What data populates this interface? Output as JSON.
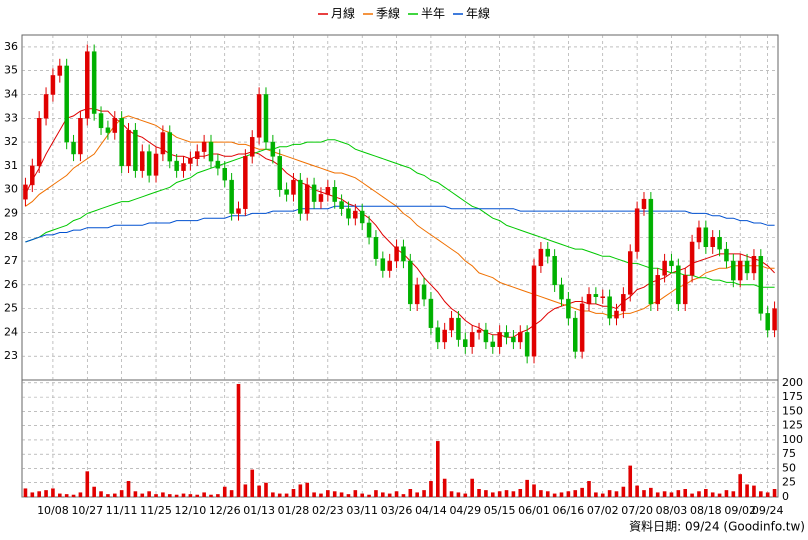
{
  "chart_data": [
    {
      "type": "candlestick",
      "categories": [
        null,
        null,
        null,
        null,
        "10/08",
        null,
        null,
        null,
        null,
        "10/27",
        null,
        null,
        null,
        null,
        "11/11",
        null,
        null,
        null,
        null,
        "11/25",
        null,
        null,
        null,
        null,
        "12/10",
        null,
        null,
        null,
        null,
        "12/26",
        null,
        null,
        null,
        null,
        "01/13",
        null,
        null,
        null,
        null,
        "01/28",
        null,
        null,
        null,
        null,
        "02/23",
        null,
        null,
        null,
        null,
        "03/11",
        null,
        null,
        null,
        null,
        "03/26",
        null,
        null,
        null,
        null,
        "04/14",
        null,
        null,
        null,
        null,
        "04/29",
        null,
        null,
        null,
        null,
        "05/15",
        null,
        null,
        null,
        null,
        "06/01",
        null,
        null,
        null,
        null,
        "06/16",
        null,
        null,
        null,
        null,
        "07/02",
        null,
        null,
        null,
        null,
        "07/20",
        null,
        null,
        null,
        null,
        "08/03",
        null,
        null,
        null,
        null,
        "08/18",
        null,
        null,
        null,
        null,
        "09/02",
        null,
        null,
        null,
        "09/24",
        null
      ],
      "open": [
        29.6,
        30.2,
        31,
        33,
        34,
        34.8,
        35.2,
        32,
        31.5,
        33,
        35.8,
        33.2,
        32.6,
        32.4,
        33,
        31,
        32.5,
        30.8,
        31.6,
        30.6,
        31.5,
        32.4,
        31.2,
        30.8,
        31.1,
        31.3,
        31.6,
        32,
        31.2,
        30.9,
        30.4,
        29,
        29.2,
        31.4,
        32.2,
        34,
        32,
        31.4,
        30,
        29.8,
        30.4,
        29,
        30.2,
        29.5,
        29.8,
        30.1,
        29.5,
        29.2,
        28.8,
        29.1,
        28.6,
        28,
        27.1,
        26.6,
        27,
        27.6,
        27,
        25.2,
        26,
        25.4,
        24.2,
        23.6,
        24.1,
        24.6,
        23.7,
        23.4,
        24,
        24.1,
        23.6,
        23.4,
        24,
        23.8,
        23.6,
        24,
        23,
        26.8,
        27.5,
        27.2,
        26,
        25.4,
        24.6,
        23.2,
        25.2,
        25.6,
        25.5,
        25.5,
        24.6,
        24.9,
        25.6,
        27.4,
        29.2,
        29.6,
        25.2,
        26.4,
        27,
        26.8,
        25.2,
        26.4,
        27.8,
        28.4,
        27.6,
        28,
        27.5,
        27,
        26.2,
        27,
        26.5,
        27.2,
        24.8,
        24.1
      ],
      "high": [
        30.5,
        31.3,
        33.3,
        34.3,
        35.1,
        35.5,
        35.5,
        32.3,
        33.3,
        36.1,
        36.1,
        33.5,
        32.9,
        33.3,
        33.3,
        32.8,
        32.8,
        31.9,
        31.9,
        31.8,
        32.7,
        32.7,
        31.5,
        31.4,
        31.6,
        31.9,
        32.3,
        32.3,
        31.5,
        31.2,
        30.7,
        29.5,
        31.7,
        32.5,
        34.3,
        34.3,
        32.3,
        31.7,
        30.3,
        30.7,
        30.7,
        30.5,
        30.5,
        30.1,
        30.4,
        30.4,
        29.8,
        29.5,
        29.4,
        29.4,
        28.9,
        28.3,
        27.4,
        27.3,
        27.9,
        27.9,
        27.3,
        26.3,
        26.3,
        25.7,
        24.5,
        24.4,
        24.9,
        24.9,
        24,
        24.3,
        24.4,
        24.4,
        23.9,
        24.3,
        24.3,
        24.1,
        24.3,
        24.3,
        27.1,
        27.8,
        27.8,
        27.5,
        26.3,
        25.7,
        24.9,
        25.5,
        25.9,
        25.9,
        25.8,
        25.8,
        25.2,
        25.9,
        27.7,
        29.5,
        29.9,
        29.9,
        26.7,
        27.3,
        27.3,
        27.1,
        26.7,
        28.1,
        28.7,
        28.7,
        28.3,
        28.3,
        27.8,
        27.3,
        27.3,
        27.3,
        27.5,
        27.5,
        25.1,
        25.3
      ],
      "low": [
        29.3,
        29.9,
        30.7,
        32.7,
        33.7,
        34.5,
        31.7,
        31.2,
        31.2,
        32.7,
        32.9,
        32.3,
        32.1,
        32.1,
        30.7,
        30.7,
        30.5,
        30.5,
        30.3,
        30.3,
        31.2,
        30.9,
        30.5,
        30.5,
        30.8,
        31,
        31.3,
        30.9,
        30.6,
        30.1,
        28.7,
        28.7,
        28.9,
        31.1,
        31.9,
        31.7,
        31.1,
        29.7,
        29.5,
        29.5,
        28.7,
        28.7,
        29.2,
        29.2,
        29.5,
        29.2,
        28.9,
        28.5,
        28.5,
        28.3,
        27.7,
        26.8,
        26.3,
        26.3,
        26.7,
        26.7,
        24.9,
        24.9,
        25.1,
        23.9,
        23.3,
        23.3,
        23.8,
        23.4,
        23.1,
        23.1,
        23.7,
        23.3,
        23.1,
        23.1,
        23.5,
        23.3,
        23.3,
        22.7,
        22.7,
        26.5,
        26.9,
        25.7,
        25.1,
        24.3,
        22.9,
        22.9,
        24.9,
        25.2,
        25.2,
        24.3,
        24.3,
        24.6,
        25.3,
        27.1,
        28.9,
        24.9,
        24.9,
        26.1,
        26.5,
        24.9,
        24.9,
        26.1,
        27.5,
        27.3,
        27.3,
        27.2,
        26.7,
        25.9,
        25.9,
        26.2,
        26.2,
        24.5,
        23.8,
        23.8
      ],
      "close": [
        30.2,
        31,
        33,
        34,
        34.8,
        35.2,
        32,
        31.5,
        33,
        35.8,
        33.2,
        32.6,
        32.4,
        33,
        31,
        32.5,
        30.8,
        31.6,
        30.6,
        31.5,
        32.4,
        31.2,
        30.8,
        31.1,
        31.3,
        31.6,
        32,
        31.2,
        30.9,
        30.4,
        29,
        29.2,
        31.4,
        32.2,
        34,
        32,
        31.4,
        30,
        29.8,
        30.4,
        29,
        30.2,
        29.5,
        29.8,
        30.1,
        29.5,
        29.2,
        28.8,
        29.1,
        28.6,
        28,
        27.1,
        26.6,
        27,
        27.6,
        27,
        25.2,
        26,
        25.4,
        24.2,
        23.6,
        24.1,
        24.6,
        23.7,
        23.4,
        24,
        24.1,
        23.6,
        23.4,
        24,
        23.8,
        23.6,
        24,
        23,
        26.8,
        27.5,
        27.2,
        26,
        25.4,
        24.6,
        23.2,
        25.2,
        25.6,
        25.5,
        25.5,
        24.6,
        24.9,
        25.6,
        27.4,
        29.2,
        29.6,
        25.2,
        26.4,
        27,
        26.8,
        25.2,
        26.4,
        27.8,
        28.4,
        27.6,
        28,
        27.5,
        27,
        26.2,
        27,
        26.5,
        27.2,
        24.8,
        24.1,
        25
      ],
      "up_color": "#e00000",
      "down_color": "#00b000",
      "series": [
        {
          "name": "月線",
          "color": "#e00000",
          "values": [
            29.8,
            30.4,
            30.9,
            31.5,
            32,
            32.5,
            33,
            33.1,
            33.3,
            33.4,
            33.4,
            33.3,
            33.3,
            33,
            32.8,
            32.5,
            32.3,
            32.2,
            32,
            31.8,
            31.7,
            31.5,
            31.4,
            31.4,
            31.3,
            31.4,
            31.4,
            31.5,
            31.5,
            31.4,
            31.4,
            31.5,
            31.5,
            31.6,
            31.5,
            31.3,
            31.2,
            31,
            30.7,
            30.5,
            30.3,
            30.2,
            30,
            29.9,
            29.8,
            29.7,
            29.6,
            29.4,
            29.3,
            29,
            28.8,
            28.5,
            28.1,
            27.8,
            27.5,
            27.3,
            27,
            26.7,
            26.3,
            26,
            25.7,
            25.3,
            25,
            24.8,
            24.5,
            24.3,
            24.2,
            24,
            23.9,
            23.9,
            23.8,
            23.8,
            24,
            24.1,
            24.3,
            24.5,
            24.8,
            25,
            25.1,
            25.2,
            25.3,
            25.3,
            25.2,
            25.2,
            25.1,
            25.1,
            25,
            25.3,
            25.5,
            25.8,
            25.9,
            26.1,
            26.2,
            26.3,
            26.5,
            26.6,
            26.7,
            26.9,
            27,
            27.1,
            27.2,
            27.3,
            27.3,
            27.3,
            27.3,
            27.2,
            27.1,
            27,
            26.8,
            26.5
          ]
        },
        {
          "name": "季線",
          "color": "#f07000",
          "values": [
            29.3,
            29.5,
            29.8,
            30,
            30.2,
            30.4,
            30.6,
            30.9,
            31.1,
            31.3,
            31.5,
            31.9,
            32.3,
            32.7,
            33,
            33.1,
            33,
            32.9,
            32.8,
            32.7,
            32.5,
            32.4,
            32.2,
            32.1,
            32,
            32,
            32,
            32,
            32,
            32,
            32,
            31.9,
            31.9,
            31.8,
            31.7,
            31.7,
            31.6,
            31.5,
            31.4,
            31.3,
            31.2,
            31.1,
            31,
            30.9,
            30.8,
            30.7,
            30.7,
            30.6,
            30.5,
            30.3,
            30.1,
            29.9,
            29.7,
            29.5,
            29.3,
            29,
            28.8,
            28.5,
            28.3,
            28.1,
            27.9,
            27.7,
            27.5,
            27.3,
            27,
            26.8,
            26.5,
            26.4,
            26.3,
            26.1,
            26,
            25.9,
            25.8,
            25.7,
            25.6,
            25.5,
            25.4,
            25.3,
            25.2,
            25.1,
            25,
            24.9,
            24.9,
            24.8,
            24.8,
            24.7,
            24.7,
            24.8,
            24.8,
            24.9,
            25,
            25.2,
            25.3,
            25.5,
            25.7,
            25.9,
            26,
            26.2,
            26.3,
            26.5,
            26.6,
            26.7,
            26.7,
            26.8,
            26.8,
            26.8,
            26.8,
            26.8,
            26.7,
            26.7
          ]
        },
        {
          "name": "半年",
          "color": "#00c800",
          "values": [
            27.8,
            27.9,
            28,
            28.2,
            28.3,
            28.4,
            28.5,
            28.7,
            28.8,
            29,
            29.1,
            29.2,
            29.3,
            29.4,
            29.5,
            29.5,
            29.6,
            29.7,
            29.8,
            29.9,
            30,
            30.1,
            30.3,
            30.4,
            30.5,
            30.7,
            30.8,
            30.9,
            31,
            31.1,
            31.2,
            31.3,
            31.4,
            31.5,
            31.6,
            31.7,
            31.7,
            31.8,
            31.8,
            31.9,
            31.9,
            32,
            32,
            32,
            32.1,
            32.1,
            32,
            31.9,
            31.7,
            31.6,
            31.5,
            31.4,
            31.3,
            31.2,
            31.1,
            31,
            30.9,
            30.7,
            30.6,
            30.4,
            30.3,
            30.1,
            29.9,
            29.7,
            29.5,
            29.3,
            29.2,
            29,
            28.8,
            28.7,
            28.5,
            28.4,
            28.3,
            28.2,
            28.1,
            28,
            27.9,
            27.8,
            27.7,
            27.6,
            27.5,
            27.5,
            27.4,
            27.3,
            27.2,
            27.2,
            27.1,
            27,
            26.9,
            26.9,
            26.8,
            26.7,
            26.7,
            26.6,
            26.5,
            26.5,
            26.4,
            26.4,
            26.3,
            26.3,
            26.2,
            26.2,
            26.1,
            26.1,
            26,
            26,
            26,
            25.9,
            25.9,
            25.9
          ]
        },
        {
          "name": "年線",
          "color": "#0050d0",
          "values": [
            27.8,
            27.9,
            28,
            28.1,
            28.1,
            28.2,
            28.2,
            28.3,
            28.3,
            28.4,
            28.4,
            28.4,
            28.4,
            28.5,
            28.5,
            28.5,
            28.5,
            28.5,
            28.6,
            28.6,
            28.6,
            28.6,
            28.7,
            28.7,
            28.7,
            28.7,
            28.8,
            28.8,
            28.8,
            28.8,
            28.9,
            28.9,
            28.9,
            29,
            29,
            29,
            29.1,
            29.1,
            29.1,
            29.1,
            29.2,
            29.2,
            29.2,
            29.2,
            29.2,
            29.3,
            29.3,
            29.3,
            29.3,
            29.3,
            29.3,
            29.3,
            29.3,
            29.3,
            29.3,
            29.3,
            29.3,
            29.3,
            29.3,
            29.3,
            29.3,
            29.3,
            29.2,
            29.2,
            29.2,
            29.2,
            29.2,
            29.2,
            29.2,
            29.2,
            29.2,
            29.2,
            29.1,
            29.1,
            29.1,
            29.1,
            29.1,
            29.1,
            29.1,
            29.1,
            29.1,
            29.1,
            29.1,
            29.1,
            29.1,
            29.1,
            29.1,
            29.1,
            29.1,
            29.1,
            29.1,
            29.1,
            29.1,
            29.1,
            29.1,
            29.1,
            29.1,
            29,
            29,
            29,
            28.9,
            28.9,
            28.8,
            28.8,
            28.7,
            28.7,
            28.6,
            28.6,
            28.5,
            28.5
          ]
        }
      ],
      "ylim": [
        22,
        36.5
      ],
      "yticks": [
        23,
        24,
        25,
        26,
        27,
        28,
        29,
        30,
        31,
        32,
        33,
        34,
        35,
        36
      ],
      "grid": true,
      "legend": "top"
    },
    {
      "type": "bar",
      "color": "#e00000",
      "values": [
        15,
        8,
        10,
        12,
        15,
        6,
        5,
        4,
        8,
        45,
        18,
        10,
        5,
        6,
        12,
        28,
        10,
        6,
        10,
        5,
        8,
        5,
        4,
        6,
        5,
        4,
        8,
        4,
        5,
        18,
        12,
        198,
        22,
        48,
        20,
        25,
        8,
        6,
        6,
        14,
        22,
        25,
        8,
        6,
        12,
        10,
        8,
        5,
        12,
        6,
        4,
        12,
        8,
        6,
        10,
        5,
        14,
        8,
        12,
        28,
        98,
        32,
        10,
        8,
        6,
        32,
        14,
        12,
        8,
        10,
        12,
        10,
        14,
        30,
        22,
        12,
        10,
        6,
        8,
        10,
        12,
        16,
        28,
        8,
        6,
        12,
        10,
        18,
        55,
        20,
        12,
        16,
        8,
        10,
        8,
        12,
        14,
        6,
        10,
        14,
        8,
        6,
        12,
        10,
        40,
        22,
        20,
        10,
        8,
        14
      ],
      "ylim": [
        0,
        205
      ],
      "yticks": [
        0,
        25,
        50,
        75,
        100,
        125,
        150,
        175,
        200
      ],
      "grid": true,
      "annotation": "資料日期: 09/24 (Goodinfo.tw)"
    }
  ]
}
